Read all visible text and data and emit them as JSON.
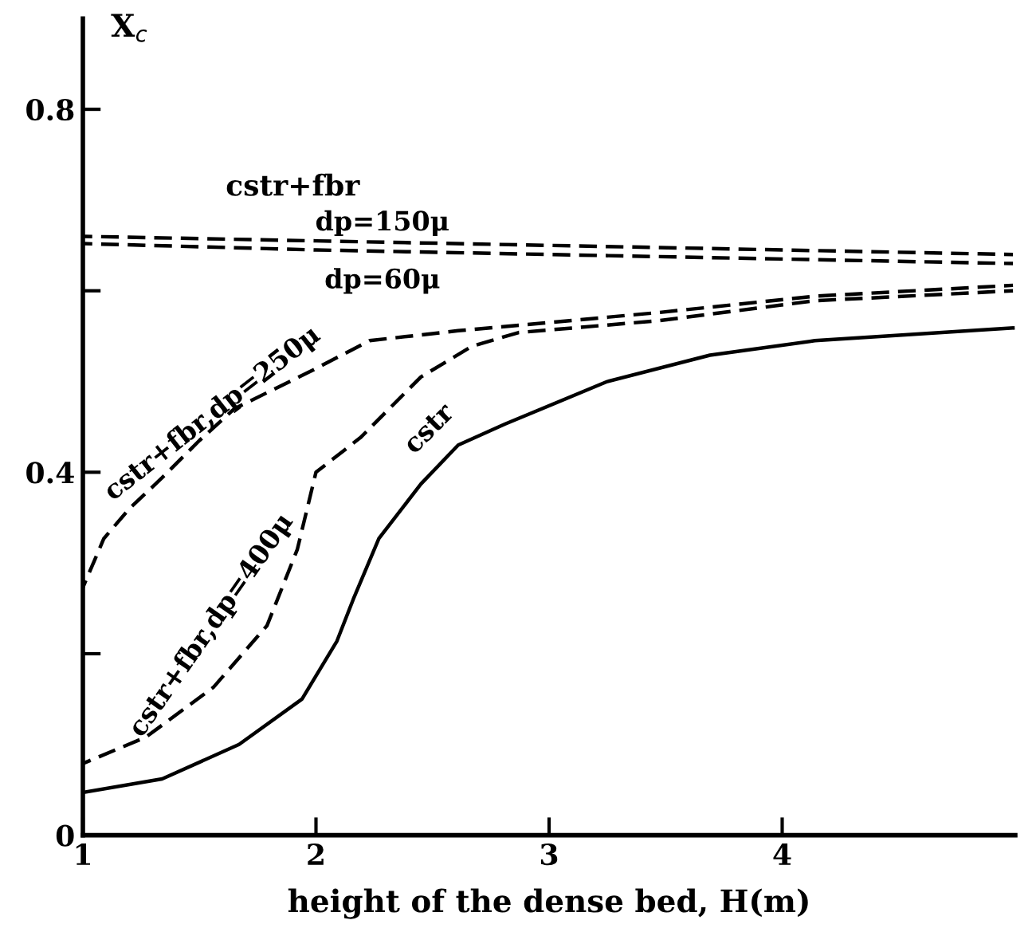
{
  "chart_data": {
    "type": "line",
    "xlabel": "height of the dense bed, H(m)",
    "ylabel": "X$_{c}$",
    "xlim": [
      1,
      5
    ],
    "ylim": [
      0,
      0.9
    ],
    "xticks": [
      1,
      2,
      3,
      4
    ],
    "yticks": [
      0,
      {
        "value": 0.2,
        "label": null
      },
      0.4,
      {
        "value": 0.6,
        "label": null
      },
      0.8
    ],
    "grid": false,
    "legend": false,
    "marker": "none",
    "annotations": [
      {
        "text": "cstr+fbr",
        "x": 1.9,
        "y": 0.66
      }
    ],
    "series": [
      {
        "name": "dp=150μ",
        "color": "#000000",
        "line_style": "dashed",
        "x": [
          1,
          2,
          3,
          4,
          4.99
        ],
        "values": [
          0.66,
          0.655,
          0.65,
          0.645,
          0.64
        ]
      },
      {
        "name": "dp=60μ",
        "color": "#000000",
        "line_style": "dashed",
        "x": [
          1,
          2,
          3,
          4,
          4.99
        ],
        "values": [
          0.652,
          0.645,
          0.64,
          0.635,
          0.63
        ]
      },
      {
        "name": "cstr+fbr,dp=250μ",
        "color": "#000000",
        "line_style": "dashed",
        "x": [
          1,
          1.09,
          1.2,
          1.34,
          1.5,
          1.65,
          1.99,
          2.23,
          2.61,
          2.87,
          3.47,
          4.14,
          4.99
        ],
        "values": [
          0.273,
          0.327,
          0.36,
          0.394,
          0.435,
          0.47,
          0.513,
          0.545,
          0.556,
          0.562,
          0.576,
          0.594,
          0.606
        ]
      },
      {
        "name": "cstr+fbr,dp=400μ",
        "color": "#000000",
        "line_style": "dashed",
        "x": [
          1,
          1.27,
          1.56,
          1.79,
          1.92,
          2.0,
          2.19,
          2.45,
          2.67,
          2.87,
          3.47,
          4.14,
          4.99
        ],
        "values": [
          0.079,
          0.108,
          0.163,
          0.231,
          0.315,
          0.4,
          0.438,
          0.505,
          0.539,
          0.554,
          0.567,
          0.589,
          0.6
        ]
      },
      {
        "name": "cstr",
        "color": "#000000",
        "line_style": "solid",
        "x": [
          1,
          1.34,
          1.67,
          1.94,
          2.09,
          2.16,
          2.27,
          2.45,
          2.61,
          2.81,
          3.25,
          3.69,
          4.14,
          4.99
        ],
        "values": [
          0.047,
          0.062,
          0.1,
          0.15,
          0.214,
          0.26,
          0.327,
          0.387,
          0.43,
          0.453,
          0.5,
          0.529,
          0.545,
          0.559
        ]
      }
    ]
  }
}
